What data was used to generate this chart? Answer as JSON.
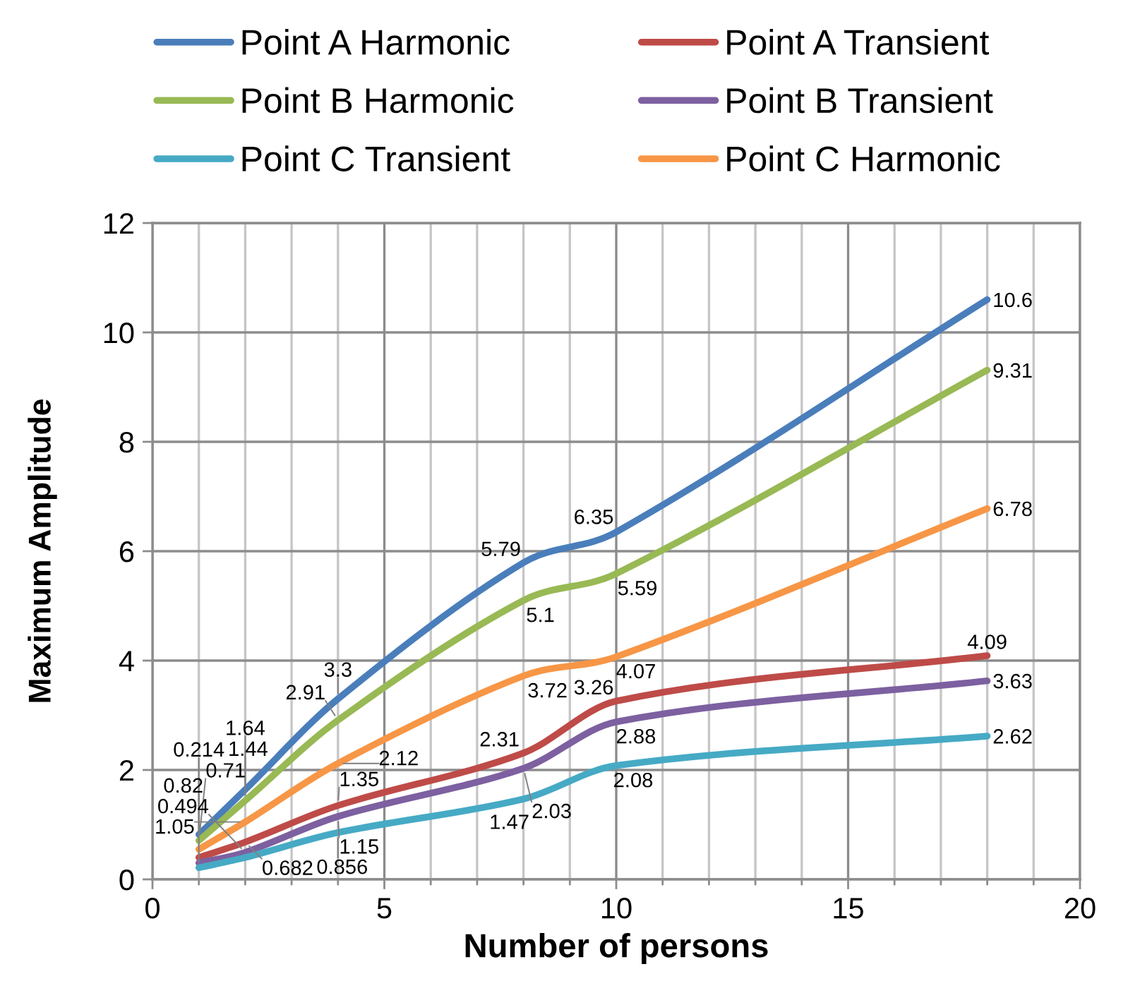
{
  "chart_data": {
    "type": "line",
    "xlabel": "Number of persons",
    "ylabel": "Maximum Amplitude",
    "x": [
      1,
      2,
      4,
      8,
      10,
      18
    ],
    "series": [
      {
        "name": "Point A Harmonic",
        "color": "#4A7EBB",
        "values": [
          0.82,
          1.64,
          3.3,
          5.79,
          6.35,
          10.6
        ],
        "value_labels": [
          "0.82",
          "1.64",
          "3.3",
          "5.79",
          "6.35",
          "10.6"
        ]
      },
      {
        "name": "Point A Transient",
        "color": "#BE4B48",
        "values": [
          0.4,
          0.682,
          1.35,
          2.31,
          3.26,
          4.09
        ],
        "value_labels": [
          null,
          "0.682",
          "1.35",
          "2.31",
          "3.26",
          "4.09"
        ]
      },
      {
        "name": "Point B Harmonic",
        "color": "#98B954",
        "values": [
          0.71,
          1.44,
          2.91,
          5.1,
          5.59,
          9.31
        ],
        "value_labels": [
          "0.71",
          "1.44",
          "2.91",
          "5.1",
          "5.59",
          "9.31"
        ]
      },
      {
        "name": "Point B Transient",
        "color": "#7D60A0",
        "values": [
          0.3,
          0.494,
          1.15,
          2.03,
          2.88,
          3.63
        ],
        "value_labels": [
          null,
          "0.494",
          "1.15",
          "2.03",
          "2.88",
          "3.63"
        ]
      },
      {
        "name": "Point C Transient",
        "color": "#46AAC5",
        "values": [
          0.214,
          0.4,
          0.856,
          1.47,
          2.08,
          2.62
        ],
        "value_labels": [
          "0.214",
          null,
          "0.856",
          "1.47",
          "2.08",
          "2.62"
        ]
      },
      {
        "name": "Point C Harmonic",
        "color": "#F79646",
        "values": [
          0.55,
          1.05,
          2.12,
          3.72,
          4.07,
          6.78
        ],
        "value_labels": [
          null,
          "1.05",
          "2.12",
          "3.72",
          "4.07",
          "6.78"
        ]
      }
    ],
    "xlim": [
      0,
      20
    ],
    "xticks": [
      0,
      {
        "value": 1,
        "label": null
      },
      {
        "value": 2,
        "label": null
      },
      {
        "value": 3,
        "label": null
      },
      {
        "value": 4,
        "label": null
      },
      5,
      {
        "value": 6,
        "label": null
      },
      {
        "value": 7,
        "label": null
      },
      {
        "value": 8,
        "label": null
      },
      {
        "value": 9,
        "label": null
      },
      10,
      {
        "value": 11,
        "label": null
      },
      {
        "value": 12,
        "label": null
      },
      {
        "value": 13,
        "label": null
      },
      {
        "value": 14,
        "label": null
      },
      15,
      {
        "value": 16,
        "label": null
      },
      {
        "value": 17,
        "label": null
      },
      {
        "value": 18,
        "label": null
      },
      {
        "value": 19,
        "label": null
      },
      20
    ],
    "ylim": [
      0,
      12
    ],
    "yticks": [
      0,
      2,
      4,
      6,
      8,
      10,
      12
    ],
    "grid": true,
    "legend": "top",
    "line_style": "solid"
  }
}
